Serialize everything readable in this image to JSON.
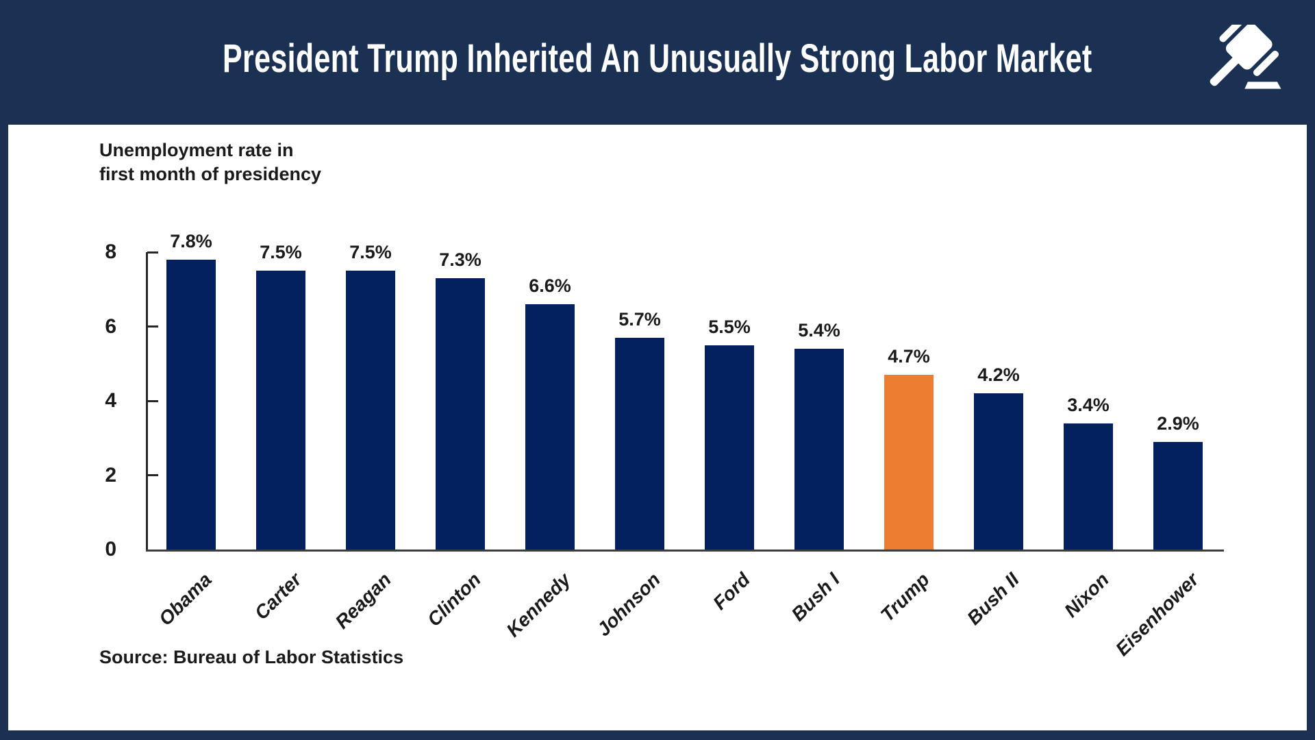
{
  "header": {
    "title": "President Trump Inherited An Unusually Strong Labor Market",
    "icon": "gavel-icon"
  },
  "note": {
    "line1": "Unemployment rate in",
    "line2": "first month of presidency"
  },
  "source": "Source: Bureau of Labor Statistics",
  "colors": {
    "background_navy": "#1B3153",
    "bar_navy": "#03215F",
    "bar_highlight_orange": "#ED7D31",
    "card_white": "#FFFFFF",
    "text_black": "#1A1A1A"
  },
  "chart_data": {
    "type": "bar",
    "title": "Unemployment rate in first month of presidency",
    "categories": [
      "Obama",
      "Carter",
      "Reagan",
      "Clinton",
      "Kennedy",
      "Johnson",
      "Ford",
      "Bush I",
      "Trump",
      "Bush II",
      "Nixon",
      "Eisenhower"
    ],
    "values": [
      7.8,
      7.5,
      7.5,
      7.3,
      6.6,
      5.7,
      5.5,
      5.4,
      4.7,
      4.2,
      3.4,
      2.9
    ],
    "value_labels": [
      "7.8%",
      "7.5%",
      "7.5%",
      "7.3%",
      "6.6%",
      "5.7%",
      "5.5%",
      "5.4%",
      "4.7%",
      "4.2%",
      "3.4%",
      "2.9%"
    ],
    "highlight_category": "Trump",
    "highlight_index": 8,
    "xlabel": "",
    "ylabel": "",
    "ylim": [
      0,
      8
    ],
    "yticks": [
      0,
      2,
      4,
      6,
      8
    ],
    "ytick_labels": [
      "0",
      "2",
      "4",
      "6",
      "8"
    ],
    "grid": false,
    "legend": false,
    "source": "Source: Bureau of Labor Statistics"
  }
}
